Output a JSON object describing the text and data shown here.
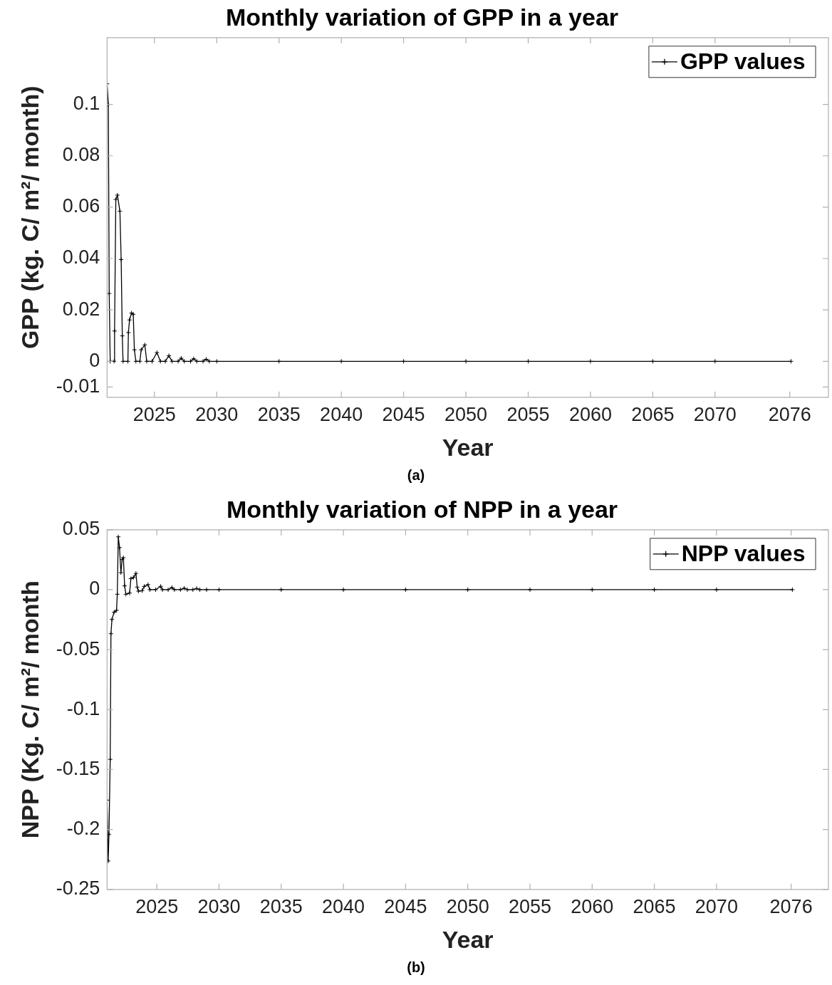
{
  "chart_data": [
    {
      "type": "line",
      "title": "Monthly variation of GPP in a year",
      "xlabel": "Year",
      "ylabel": "GPP (kg. C/ m²/ month)",
      "x": [
        2021.2,
        2021.3,
        2021.37,
        2021.45,
        2021.76,
        2021.8,
        2021.9,
        2022.03,
        2022.23,
        2022.33,
        2022.42,
        2022.48,
        2022.87,
        2022.91,
        2023.0,
        2023.16,
        2023.3,
        2023.39,
        2023.51,
        2023.83,
        2023.94,
        2024.23,
        2024.38,
        2024.81,
        2025.2,
        2025.48,
        2025.87,
        2026.16,
        2026.41,
        2026.9,
        2027.15,
        2027.4,
        2027.9,
        2028.15,
        2028.4,
        2028.9,
        2029.15,
        2029.4,
        2030,
        2035,
        2040,
        2045,
        2050,
        2055,
        2060,
        2065,
        2070,
        2076.1
      ],
      "series": [
        {
          "name": "GPP values",
          "color": "#000000",
          "values": [
            0.108,
            0.1,
            0.0264,
            0,
            0,
            0.0118,
            0.063,
            0.0647,
            0.0584,
            0.0396,
            0.0099,
            0,
            0,
            0.0112,
            0.0161,
            0.0188,
            0.0183,
            0.0045,
            0,
            0,
            0.0045,
            0.0064,
            0,
            0,
            0.0034,
            0,
            0,
            0.0022,
            0,
            0,
            0.0012,
            0,
            0,
            0.001,
            0,
            0,
            0.0008,
            0,
            0,
            0,
            0,
            0,
            0,
            0,
            0,
            0,
            0,
            0
          ]
        }
      ],
      "xlim": [
        2021.2,
        2079.1
      ],
      "xticks": [
        2025,
        2030,
        2035,
        2040,
        2045,
        2050,
        2055,
        2060,
        2065,
        2070,
        2076
      ],
      "ylim": [
        -0.014,
        0.126
      ],
      "yticks": [
        -0.01,
        0,
        0.02,
        0.04,
        0.06,
        0.08,
        0.1
      ],
      "legend": "top right",
      "marker": "cross",
      "grid": false,
      "annotations": [
        "(a)"
      ]
    },
    {
      "type": "line",
      "title": "Monthly variation of NPP in a year",
      "xlabel": "Year",
      "ylabel": "NPP (Kg. C/ m²/ month",
      "x": [
        2021.0,
        2021.09,
        2021.15,
        2021.25,
        2021.31,
        2021.39,
        2021.56,
        2021.76,
        2021.82,
        2021.9,
        2022.0,
        2022.11,
        2022.21,
        2022.31,
        2022.41,
        2022.51,
        2022.81,
        2022.91,
        2023.12,
        2023.32,
        2023.42,
        2023.52,
        2023.82,
        2023.99,
        2024.29,
        2024.44,
        2024.9,
        2025.31,
        2025.45,
        2025.91,
        2026.21,
        2026.41,
        2026.9,
        2027.2,
        2027.45,
        2027.9,
        2028.2,
        2028.45,
        2029,
        2030,
        2035,
        2040,
        2045,
        2050,
        2055,
        2060,
        2065,
        2070,
        2076.1
      ],
      "series": [
        {
          "name": "NPP values",
          "color": "#000000",
          "values": [
            -0.1755,
            -0.2263,
            -0.204,
            -0.1415,
            -0.0367,
            -0.0248,
            -0.0188,
            -0.0172,
            -0.0038,
            0.0441,
            0.0351,
            0.0142,
            0.0251,
            0.0267,
            0.0032,
            -0.0038,
            -0.0028,
            0.0092,
            0.0102,
            0.0136,
            0.0022,
            -0.0012,
            -0.0008,
            0.0028,
            0.0042,
            0,
            0,
            0.0028,
            0,
            0,
            0.0018,
            0,
            0,
            0.0012,
            0,
            0,
            0.001,
            0,
            0,
            0,
            0,
            0,
            0,
            0,
            0,
            0,
            0,
            0,
            0
          ]
        }
      ],
      "xlim": [
        2021.0,
        2079.0
      ],
      "xticks": [
        2025,
        2030,
        2035,
        2040,
        2045,
        2050,
        2055,
        2060,
        2065,
        2070,
        2076
      ],
      "ylim": [
        -0.25,
        0.05
      ],
      "yticks": [
        -0.25,
        -0.2,
        -0.15,
        -0.1,
        -0.05,
        0,
        0.05
      ],
      "legend": "top right",
      "marker": "cross",
      "grid": false,
      "annotations": [
        "(b)"
      ]
    }
  ]
}
